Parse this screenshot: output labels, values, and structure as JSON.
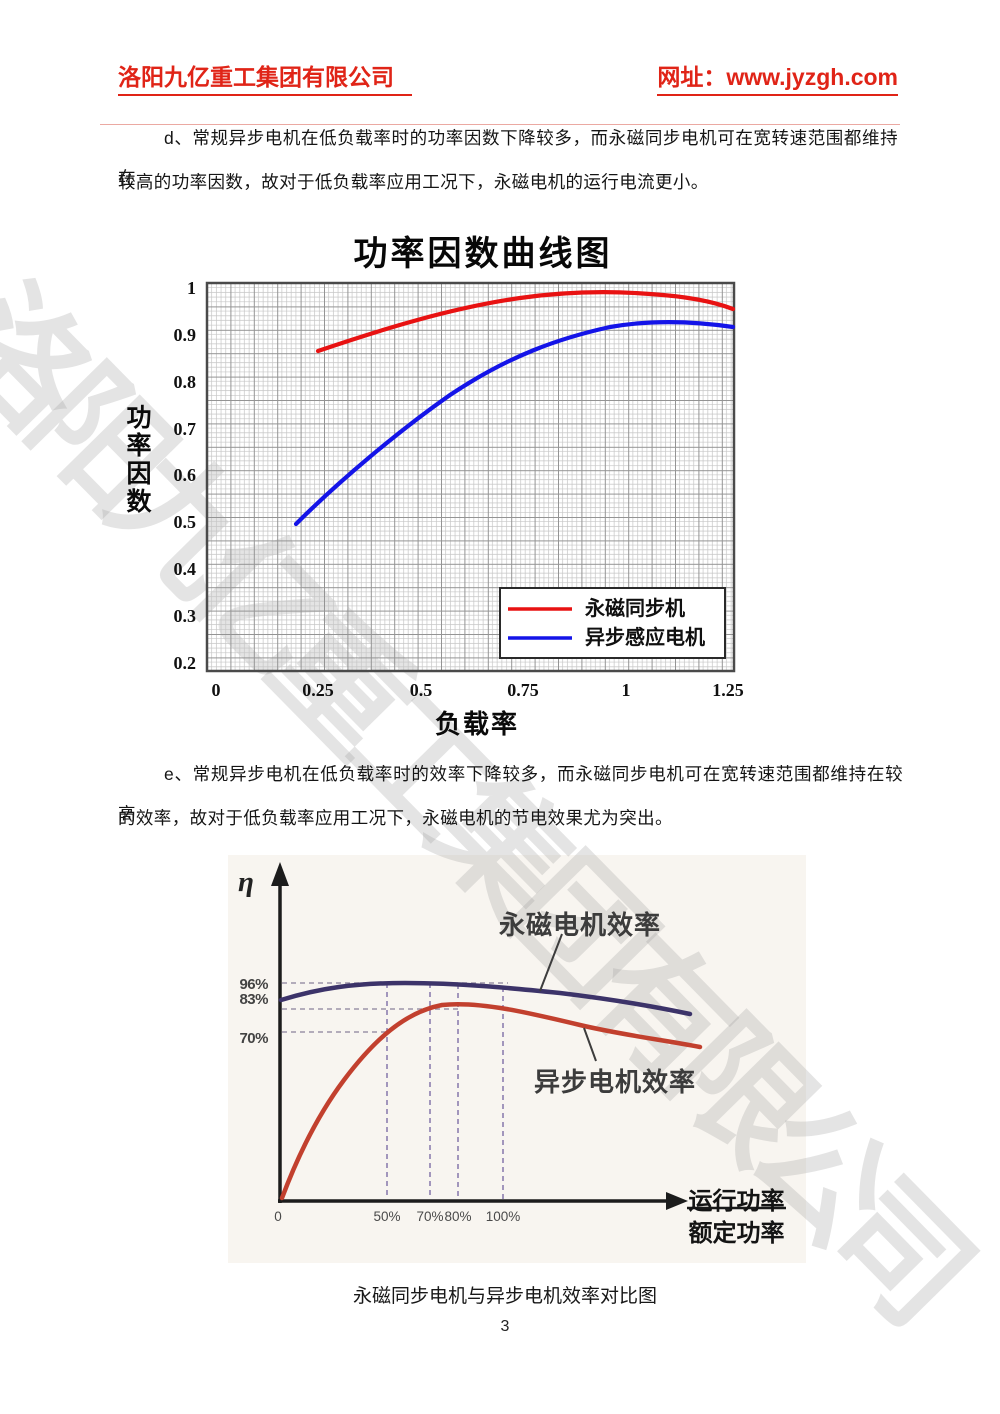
{
  "header": {
    "company": "洛阳九亿重工集团有限公司",
    "website": "网址：www.jyzgh.com",
    "accent_color": "#e02417"
  },
  "watermark": {
    "text": "洛阳九亿重工集团有限公司"
  },
  "paragraphs": {
    "d_line1": "d、常规异步电机在低负载率时的功率因数下降较多，而永磁同步电机可在宽转速范围都维持在",
    "d_line2": "较高的功率因数，故对于低负载率应用工况下，永磁电机的运行电流更小。",
    "e_line1": "e、常规异步电机在低负载率时的效率下降较多，而永磁同步电机可在宽转速范围都维持在较高",
    "e_line2": "的效率，故对于低负载率应用工况下，永磁电机的节电效果尤为突出。"
  },
  "caption": "永磁同步电机与异步电机效率对比图",
  "page_number": "3",
  "chart_data": [
    {
      "type": "line",
      "title": "功率因数曲线图",
      "xlabel": "负载率",
      "ylabel": "功率因数",
      "xlim": [
        0,
        1.26
      ],
      "ylim": [
        0.2,
        1.0
      ],
      "xticks": [
        "0",
        "0.25",
        "0.5",
        "0.75",
        "1",
        "1.25"
      ],
      "yticks": [
        "1",
        "0.9",
        "0.8",
        "0.7",
        "0.6",
        "0.5",
        "0.4",
        "0.3",
        "0.2"
      ],
      "grid": "fine-mesh",
      "legend_position": "lower-right",
      "series": [
        {
          "name": "永磁同步机",
          "color": "#e81212",
          "x": [
            0.25,
            0.4,
            0.5,
            0.6,
            0.75,
            0.9,
            1.0,
            1.1,
            1.2,
            1.26
          ],
          "y": [
            0.87,
            0.91,
            0.93,
            0.945,
            0.965,
            0.975,
            0.98,
            0.98,
            0.97,
            0.96
          ]
        },
        {
          "name": "异步感应电机",
          "color": "#1414e8",
          "x": [
            0.2,
            0.3,
            0.4,
            0.5,
            0.6,
            0.75,
            0.9,
            1.0,
            1.1,
            1.2,
            1.26
          ],
          "y": [
            0.5,
            0.57,
            0.645,
            0.7,
            0.755,
            0.83,
            0.88,
            0.905,
            0.925,
            0.925,
            0.92
          ]
        }
      ]
    },
    {
      "type": "line",
      "ylabel": "η",
      "xlabel_fraction": {
        "numerator": "运行功率",
        "denominator": "额定功率"
      },
      "xticks": [
        "0",
        "50%",
        "70%",
        "80%",
        "100%"
      ],
      "guide_labels": [
        "96%",
        "83%",
        "70%"
      ],
      "guide_y_values": [
        96,
        83,
        70
      ],
      "guide_x_values_pct": [
        50,
        70,
        80,
        100
      ],
      "series": [
        {
          "name": "永磁电机效率",
          "color": "#3c3369",
          "x_pct": [
            0,
            10,
            25,
            40,
            50,
            60,
            70,
            80,
            100,
            125,
            150,
            185
          ],
          "y_pct": [
            88,
            91,
            94,
            95.5,
            96,
            96,
            96,
            95.5,
            94,
            91,
            87,
            80.5
          ]
        },
        {
          "name": "异步电机效率",
          "color": "#c2402e",
          "x_pct": [
            0,
            10,
            25,
            40,
            50,
            60,
            70,
            80,
            100,
            125,
            150,
            185
          ],
          "y_pct": [
            0,
            12,
            45,
            64.5,
            70,
            78,
            83,
            84,
            82.5,
            77,
            70.5,
            64.5
          ]
        }
      ]
    }
  ]
}
